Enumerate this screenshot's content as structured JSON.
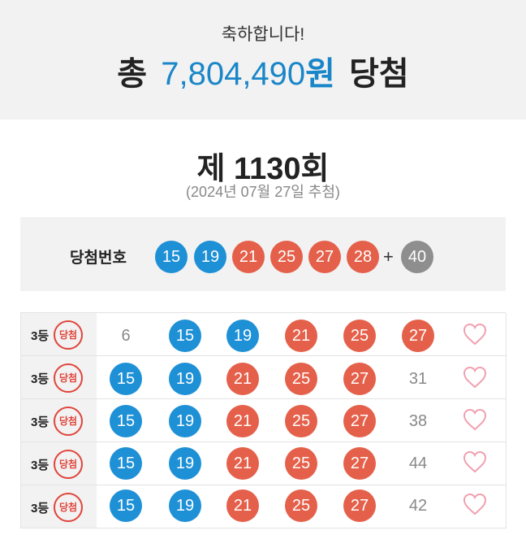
{
  "banner": {
    "congrats": "축하합니다!",
    "total_prefix": "총",
    "amount": "7,804,490",
    "won": "원",
    "total_suffix": "당첨"
  },
  "draw": {
    "round": "제 1130회",
    "date": "(2024년 07월 27일 추첨)"
  },
  "winning": {
    "label": "당첨번호",
    "numbers": [
      "15",
      "19",
      "21",
      "25",
      "27",
      "28"
    ],
    "plus": "+",
    "bonus": "40"
  },
  "colors": {
    "blue_ball": "#1e90d6",
    "red_ball": "#e5604a",
    "gray_ball": "#8e8e8e",
    "amount": "#1a86c8",
    "stamp": "#e0443a",
    "heart": "#f0a0b0"
  },
  "tickets": [
    {
      "rank": "3등",
      "stamp": "당첨",
      "numbers": [
        "6",
        "15",
        "19",
        "21",
        "25",
        "27"
      ]
    },
    {
      "rank": "3등",
      "stamp": "당첨",
      "numbers": [
        "15",
        "19",
        "21",
        "25",
        "27",
        "31"
      ]
    },
    {
      "rank": "3등",
      "stamp": "당첨",
      "numbers": [
        "15",
        "19",
        "21",
        "25",
        "27",
        "38"
      ]
    },
    {
      "rank": "3등",
      "stamp": "당첨",
      "numbers": [
        "15",
        "19",
        "21",
        "25",
        "27",
        "44"
      ]
    },
    {
      "rank": "3등",
      "stamp": "당첨",
      "numbers": [
        "15",
        "19",
        "21",
        "25",
        "27",
        "42"
      ]
    }
  ],
  "icons": {
    "favorite": "heart-outline-icon"
  }
}
